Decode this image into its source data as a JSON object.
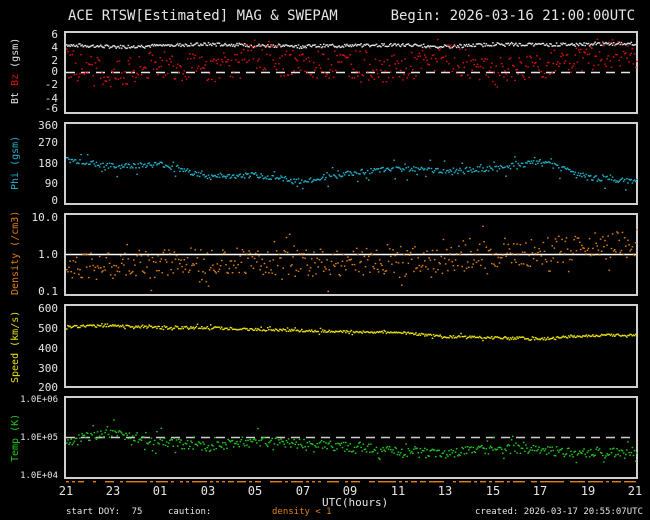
{
  "header": {
    "title": "ACE RTSW[Estimated] MAG & SWEPAM",
    "begin": "Begin: 2026-03-16 21:00:00UTC"
  },
  "panels": [
    {
      "id": "mag",
      "ylabel_parts": [
        "Bt",
        "Bz",
        "(gsm)"
      ],
      "ticks": [
        "6",
        "4",
        "2",
        "0",
        "-2",
        "-4",
        "-6"
      ]
    },
    {
      "id": "phi",
      "ylabel_parts": [
        "Phi",
        "(gsm)"
      ],
      "ticks": [
        "360",
        "270",
        "180",
        "90",
        "0"
      ]
    },
    {
      "id": "density",
      "ylabel_parts": [
        "Density",
        "(/cm3)"
      ],
      "ticks": [
        "10.0",
        "1.0",
        "0.1"
      ]
    },
    {
      "id": "speed",
      "ylabel_parts": [
        "Speed",
        "(km/s)"
      ],
      "ticks": [
        "600",
        "500",
        "400",
        "300",
        "200"
      ]
    },
    {
      "id": "temp",
      "ylabel_parts": [
        "Temp",
        "(K)"
      ],
      "ticks": [
        "1.0E+06",
        "1.0E+05",
        "1.0E+04"
      ]
    }
  ],
  "xaxis": {
    "ticks": [
      "21",
      "23",
      "01",
      "03",
      "05",
      "07",
      "09",
      "11",
      "13",
      "15",
      "17",
      "19",
      "21"
    ],
    "label": "UTC(hours)"
  },
  "footer": {
    "start_doy_label": "start DOY:",
    "start_doy": "75",
    "caution_label": "caution:",
    "caution_value": "density < 1",
    "created": "created: 2026-03-17 20:55:07UTC"
  },
  "colors": {
    "bt": "#e0e0e0",
    "bz": "#e01010",
    "phi": "#20b0c8",
    "density": "#e08010",
    "speed": "#e8e010",
    "temp": "#20c820",
    "frame": "#cfcfcf"
  },
  "chart_data": [
    {
      "type": "scatter",
      "title": "ACE RTSW[Estimated] MAG & SWEPAM",
      "xlabel": "UTC(hours)",
      "ylabel": "Bt Bz (gsm)",
      "ylim": [
        -6,
        6
      ],
      "x": [
        "21",
        "23",
        "01",
        "03",
        "05",
        "07",
        "09",
        "11",
        "13",
        "15",
        "17",
        "19",
        "21"
      ],
      "series": [
        {
          "name": "Bt",
          "values": [
            4.3,
            4.0,
            4.2,
            4.4,
            4.2,
            4.1,
            4.2,
            4.3,
            4.0,
            4.4,
            4.3,
            4.4,
            4.5
          ]
        },
        {
          "name": "Bz",
          "values": [
            1.5,
            -0.5,
            1.5,
            0.5,
            2.5,
            1.0,
            1.5,
            0.5,
            2.5,
            0.0,
            1.0,
            2.5,
            3.0
          ]
        }
      ],
      "reference_line": 0
    },
    {
      "type": "scatter",
      "ylabel": "Phi (gsm)",
      "ylim": [
        0,
        360
      ],
      "x": [
        "21",
        "23",
        "01",
        "03",
        "05",
        "07",
        "09",
        "11",
        "13",
        "15",
        "17",
        "19",
        "21"
      ],
      "series": [
        {
          "name": "Phi",
          "values": [
            200,
            170,
            180,
            120,
            130,
            100,
            140,
            160,
            150,
            160,
            190,
            120,
            100
          ]
        }
      ]
    },
    {
      "type": "scatter",
      "ylabel": "Density (/cm3)",
      "yscale": "log",
      "ylim": [
        0.1,
        10.0
      ],
      "x": [
        "21",
        "23",
        "01",
        "03",
        "05",
        "07",
        "09",
        "11",
        "13",
        "15",
        "17",
        "19",
        "21"
      ],
      "series": [
        {
          "name": "Density",
          "values": [
            0.6,
            0.5,
            0.6,
            0.8,
            0.7,
            0.6,
            0.7,
            0.6,
            0.8,
            0.9,
            1.2,
            1.6,
            2.0
          ]
        }
      ],
      "reference_line": 1.0
    },
    {
      "type": "scatter",
      "ylabel": "Speed (km/s)",
      "ylim": [
        200,
        600
      ],
      "x": [
        "21",
        "23",
        "01",
        "03",
        "05",
        "07",
        "09",
        "11",
        "13",
        "15",
        "17",
        "19",
        "21"
      ],
      "series": [
        {
          "name": "Speed",
          "values": [
            500,
            505,
            495,
            495,
            485,
            480,
            475,
            470,
            450,
            445,
            440,
            455,
            460
          ]
        }
      ]
    },
    {
      "type": "scatter",
      "ylabel": "Temp (K)",
      "yscale": "log",
      "ylim": [
        10000,
        1000000
      ],
      "x": [
        "21",
        "23",
        "01",
        "03",
        "05",
        "07",
        "09",
        "11",
        "13",
        "15",
        "17",
        "19",
        "21"
      ],
      "series": [
        {
          "name": "Temp",
          "values": [
            90000,
            130000,
            80000,
            60000,
            90000,
            70000,
            60000,
            45000,
            40000,
            55000,
            50000,
            40000,
            45000
          ]
        }
      ],
      "reference_line": 100000
    }
  ]
}
